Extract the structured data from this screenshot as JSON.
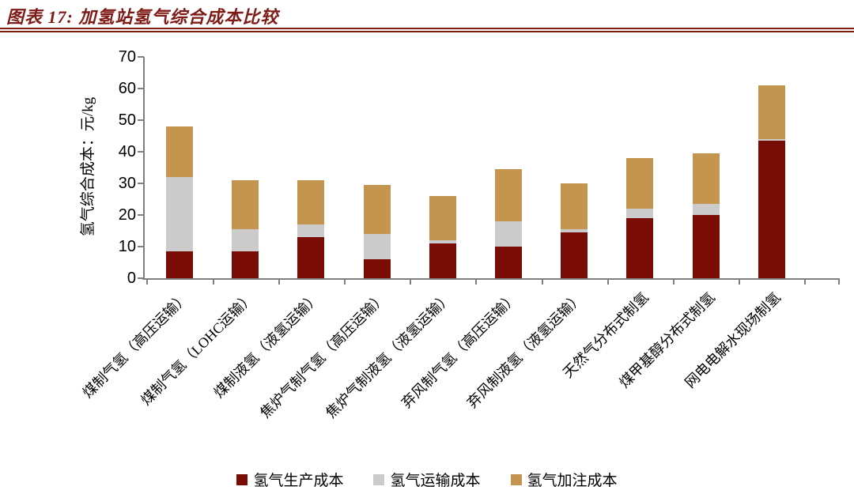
{
  "header": {
    "title": "图表 17: 加氢站氢气综合成本比较",
    "accent_color": "#7E1B16"
  },
  "chart_data": {
    "type": "bar",
    "stacked": true,
    "title": "加氢站氢气综合成本比较",
    "ylabel": "氢气综合成本：元/kg",
    "ylim": [
      0,
      70
    ],
    "yticks": [
      0,
      10,
      20,
      30,
      40,
      50,
      60,
      70
    ],
    "grid": false,
    "legend_position": "bottom",
    "axis_color": "#7F7F7F",
    "categories": [
      "煤制气氢（高压运输）",
      "煤制气氢（LOHC运输）",
      "煤制液氢（液氢运输）",
      "焦炉气制气氢（高压运输）",
      "焦炉气制液氢（液氢运输）",
      "弃风制气氢（高压运输）",
      "弃风制液氢（液氢运输）",
      "天然气分布式制氢",
      "煤甲基醇分布式制氢",
      "网电电解水现场制氢"
    ],
    "series": [
      {
        "name": "氢气生产成本",
        "color": "#7A0C06",
        "values": [
          8.5,
          8.5,
          13,
          6,
          11,
          10,
          14.5,
          19,
          20,
          43.5
        ]
      },
      {
        "name": "氢气运输成本",
        "color": "#CBCBCB",
        "values": [
          23.5,
          7,
          4,
          8,
          1,
          8,
          1,
          3,
          3.5,
          0.5
        ]
      },
      {
        "name": "氢气加注成本",
        "color": "#C4954E",
        "values": [
          16,
          15.5,
          14,
          15.5,
          14,
          16.5,
          14.5,
          16,
          16,
          17
        ]
      }
    ]
  }
}
